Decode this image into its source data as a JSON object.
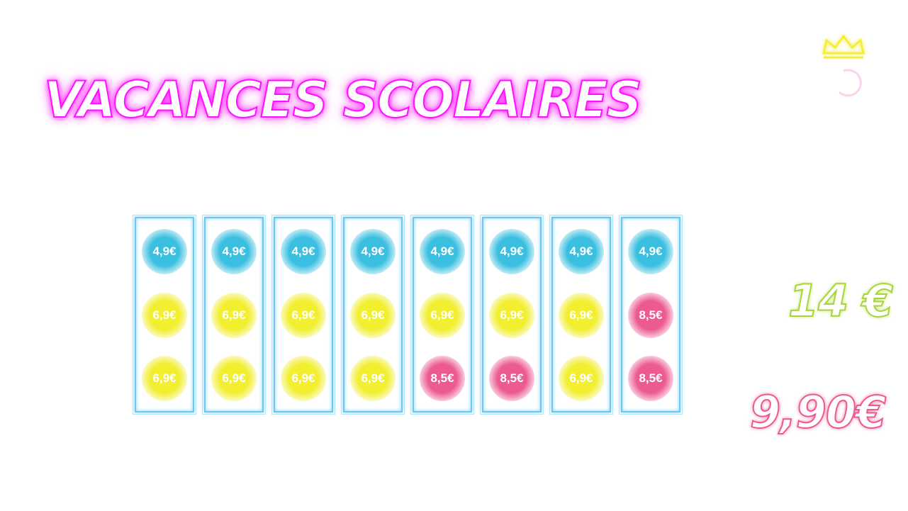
{
  "title": "VACANCES SCOLAIRES",
  "columns": [
    {
      "items": [
        {
          "label": "4,9€",
          "color": "#3bbfe0"
        },
        {
          "label": "6,9€",
          "color": "#f2ee30"
        },
        {
          "label": "6,9€",
          "color": "#f2ee30"
        }
      ]
    },
    {
      "items": [
        {
          "label": "4,9€",
          "color": "#3bbfe0"
        },
        {
          "label": "6,9€",
          "color": "#f2ee30"
        },
        {
          "label": "6,9€",
          "color": "#f2ee30"
        }
      ]
    },
    {
      "items": [
        {
          "label": "4,9€",
          "color": "#3bbfe0"
        },
        {
          "label": "6,9€",
          "color": "#f2ee30"
        },
        {
          "label": "6,9€",
          "color": "#f2ee30"
        }
      ]
    },
    {
      "items": [
        {
          "label": "4,9€",
          "color": "#3bbfe0"
        },
        {
          "label": "6,9€",
          "color": "#f2ee30"
        },
        {
          "label": "6,9€",
          "color": "#f2ee30"
        }
      ]
    },
    {
      "items": [
        {
          "label": "4,9€",
          "color": "#3bbfe0"
        },
        {
          "label": "6,9€",
          "color": "#f2ee30"
        },
        {
          "label": "8,5€",
          "color": "#ec5a92"
        }
      ]
    },
    {
      "items": [
        {
          "label": "4,9€",
          "color": "#3bbfe0"
        },
        {
          "label": "6,9€",
          "color": "#f2ee30"
        },
        {
          "label": "8,5€",
          "color": "#ec5a92"
        }
      ]
    },
    {
      "items": [
        {
          "label": "4,9€",
          "color": "#3bbfe0"
        },
        {
          "label": "6,9€",
          "color": "#f2ee30"
        },
        {
          "label": "6,9€",
          "color": "#f2ee30"
        }
      ]
    },
    {
      "items": [
        {
          "label": "4,9€",
          "color": "#3bbfe0"
        },
        {
          "label": "8,5€",
          "color": "#ec5a92"
        },
        {
          "label": "8,5€",
          "color": "#ec5a92"
        }
      ]
    }
  ],
  "side_prices": [
    {
      "label": "14 €",
      "color": "#a8d63a"
    },
    {
      "label": "9,90€",
      "color": "#ec5a92"
    }
  ]
}
